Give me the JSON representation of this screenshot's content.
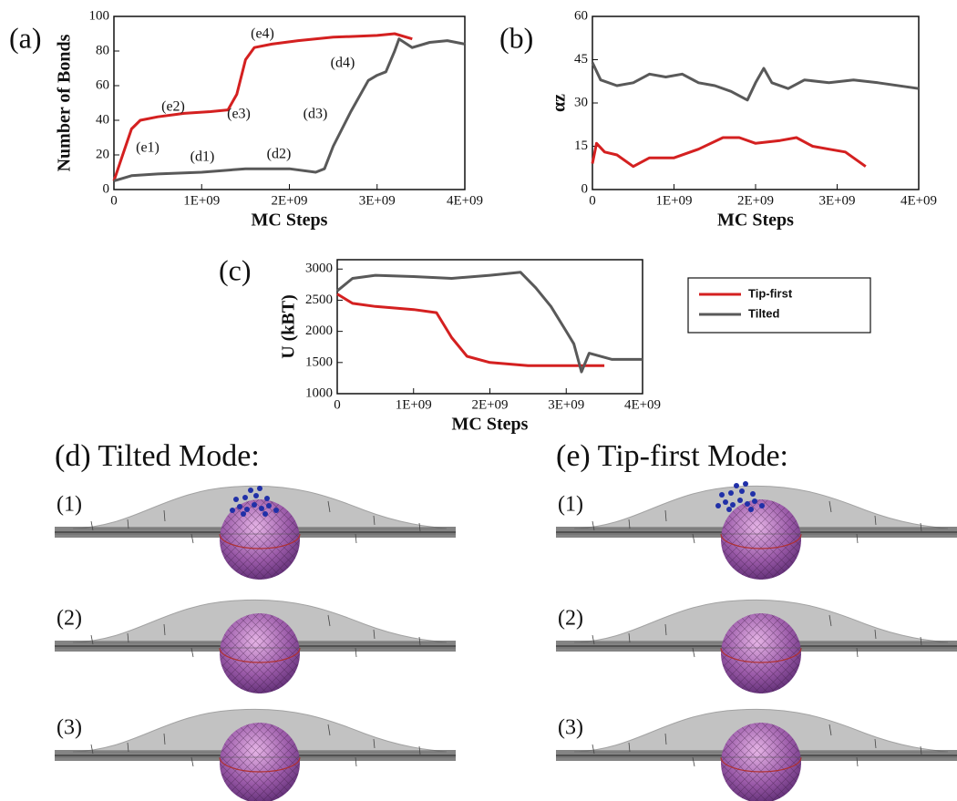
{
  "chart_data": [
    {
      "type": "line",
      "panel_label": "(a)",
      "x_label": "MC Steps",
      "y_label": "Number of Bonds",
      "xlim": [
        0,
        4000000000
      ],
      "ylim": [
        0,
        100
      ],
      "xticks": [
        0,
        {
          "value": 1000000000,
          "label": "1E+09"
        },
        {
          "value": 2000000000,
          "label": "2E+09"
        },
        {
          "value": 3000000000,
          "label": "3E+09"
        },
        {
          "value": 4000000000,
          "label": "4E+09"
        }
      ],
      "yticks": [
        0,
        20,
        40,
        60,
        80,
        100
      ],
      "series": [
        {
          "name": "Tip-first",
          "color": "#d42020",
          "x": [
            0,
            100000000,
            200000000,
            300000000,
            500000000,
            800000000,
            1100000000,
            1300000000,
            1400000000,
            1500000000,
            1600000000,
            1800000000,
            2100000000,
            2500000000,
            3000000000,
            3200000000,
            3400000000
          ],
          "values": [
            5,
            20,
            35,
            40,
            42,
            44,
            45,
            46,
            55,
            75,
            82,
            84,
            86,
            88,
            89,
            90,
            87
          ]
        },
        {
          "name": "Tilted",
          "color": "#595959",
          "x": [
            0,
            200000000,
            500000000,
            1000000000,
            1500000000,
            2000000000,
            2300000000,
            2400000000,
            2500000000,
            2700000000,
            2900000000,
            3000000000,
            3100000000,
            3200000000,
            3250000000,
            3400000000,
            3600000000,
            3800000000,
            4000000000
          ],
          "values": [
            5,
            8,
            9,
            10,
            12,
            12,
            10,
            12,
            25,
            45,
            63,
            66,
            68,
            80,
            87,
            82,
            85,
            86,
            84
          ]
        }
      ],
      "annotations": [
        "(e1)",
        "(e2)",
        "(e3)",
        "(e4)",
        "(d1)",
        "(d2)",
        "(d3)",
        "(d4)"
      ]
    },
    {
      "type": "line",
      "panel_label": "(b)",
      "x_label": "MC Steps",
      "y_label": "αz",
      "xlim": [
        0,
        4000000000
      ],
      "ylim": [
        0,
        60
      ],
      "xticks": [
        0,
        {
          "value": 1000000000,
          "label": "1E+09"
        },
        {
          "value": 2000000000,
          "label": "2E+09"
        },
        {
          "value": 3000000000,
          "label": "3E+09"
        },
        {
          "value": 4000000000,
          "label": "4E+09"
        }
      ],
      "yticks": [
        0,
        15,
        30,
        45,
        60
      ],
      "series": [
        {
          "name": "Tilted",
          "color": "#595959",
          "x": [
            0,
            100000000,
            300000000,
            500000000,
            700000000,
            900000000,
            1100000000,
            1300000000,
            1500000000,
            1700000000,
            1900000000,
            2000000000,
            2100000000,
            2200000000,
            2400000000,
            2600000000,
            2900000000,
            3200000000,
            3500000000,
            4000000000
          ],
          "values": [
            44,
            38,
            36,
            37,
            40,
            39,
            40,
            37,
            36,
            34,
            31,
            37,
            42,
            37,
            35,
            38,
            37,
            38,
            37,
            35
          ]
        },
        {
          "name": "Tip-first",
          "color": "#d42020",
          "x": [
            0,
            50000000,
            150000000,
            300000000,
            500000000,
            700000000,
            1000000000,
            1300000000,
            1600000000,
            1800000000,
            2000000000,
            2300000000,
            2500000000,
            2700000000,
            2900000000,
            3100000000,
            3350000000
          ],
          "values": [
            9,
            16,
            13,
            12,
            8,
            11,
            11,
            14,
            18,
            18,
            16,
            17,
            18,
            15,
            14,
            13,
            8
          ]
        }
      ]
    },
    {
      "type": "line",
      "panel_label": "(c)",
      "x_label": "MC Steps",
      "y_label": "U (kBT)",
      "xlim": [
        0,
        4000000000
      ],
      "ylim": [
        1000,
        3150
      ],
      "xticks": [
        0,
        {
          "value": 1000000000,
          "label": "1E+09"
        },
        {
          "value": 2000000000,
          "label": "2E+09"
        },
        {
          "value": 3000000000,
          "label": "3E+09"
        },
        {
          "value": 4000000000,
          "label": "4E+09"
        }
      ],
      "yticks": [
        1000,
        1500,
        2000,
        2500,
        3000
      ],
      "legend": "outside right",
      "series": [
        {
          "name": "Tip-first",
          "color": "#d42020",
          "x": [
            0,
            200000000,
            500000000,
            1000000000,
            1300000000,
            1500000000,
            1700000000,
            2000000000,
            2500000000,
            3000000000,
            3500000000
          ],
          "values": [
            2600,
            2450,
            2400,
            2350,
            2300,
            1900,
            1600,
            1500,
            1450,
            1450,
            1450
          ]
        },
        {
          "name": "Tilted",
          "color": "#595959",
          "x": [
            0,
            200000000,
            500000000,
            1000000000,
            1500000000,
            2000000000,
            2400000000,
            2600000000,
            2800000000,
            3000000000,
            3100000000,
            3200000000,
            3300000000,
            3600000000,
            4000000000
          ],
          "values": [
            2650,
            2850,
            2900,
            2880,
            2850,
            2900,
            2950,
            2700,
            2400,
            2000,
            1800,
            1350,
            1650,
            1550,
            1550
          ]
        }
      ]
    }
  ],
  "figure_panels": [
    {
      "title": "(d) Tilted Mode:",
      "rows": [
        "(1)",
        "(2)",
        "(3)"
      ]
    },
    {
      "title": "(e) Tip-first Mode:",
      "rows": [
        "(1)",
        "(2)",
        "(3)"
      ]
    }
  ]
}
